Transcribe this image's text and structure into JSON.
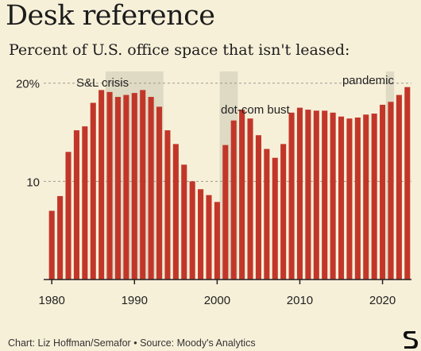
{
  "title": "Desk reference",
  "subtitle": "Percent of U.S. office space that isn't leased:",
  "footer": {
    "credit": "Chart: Liz Hoffman/Semafor",
    "separator": "•",
    "source": "Source: Moody's Analytics"
  },
  "logo": {
    "icon": "semafor-s-logo-icon"
  },
  "chart_data": {
    "type": "bar",
    "x": [
      1980,
      1981,
      1982,
      1983,
      1984,
      1985,
      1986,
      1987,
      1988,
      1989,
      1990,
      1991,
      1992,
      1993,
      1994,
      1995,
      1996,
      1997,
      1998,
      1999,
      2000,
      2001,
      2002,
      2003,
      2004,
      2005,
      2006,
      2007,
      2008,
      2009,
      2010,
      2011,
      2012,
      2013,
      2014,
      2015,
      2016,
      2017,
      2018,
      2019,
      2020,
      2021,
      2022,
      2023
    ],
    "values": [
      7.0,
      8.5,
      13.0,
      15.2,
      15.6,
      18.0,
      19.3,
      19.1,
      18.6,
      18.8,
      19.0,
      19.3,
      18.6,
      17.6,
      15.2,
      13.8,
      11.7,
      10.0,
      9.2,
      8.6,
      7.9,
      13.7,
      16.2,
      17.3,
      16.4,
      14.7,
      13.3,
      12.4,
      13.8,
      17.0,
      17.5,
      17.3,
      17.2,
      17.2,
      17.0,
      16.6,
      16.4,
      16.5,
      16.8,
      16.9,
      17.8,
      18.1,
      18.8,
      19.6
    ],
    "ylim": [
      0,
      22
    ],
    "yticks": [
      10,
      20
    ],
    "ytick_labels": [
      "10",
      "20%"
    ],
    "xticks": [
      1980,
      1990,
      2000,
      2010,
      2020
    ],
    "xtick_labels": [
      "1980",
      "1990",
      "2000",
      "2010",
      "2020"
    ],
    "grid": "dashed horizontal at y ticks",
    "bar_color": "#c2362a",
    "annotations": [
      {
        "label": "S&L crisis",
        "start": 1986.5,
        "end": 1993.5
      },
      {
        "label": "dot-com bust",
        "start": 2000.3,
        "end": 2002.5
      },
      {
        "label": "pandemic",
        "start": 2020.4,
        "end": 2021.4
      }
    ],
    "shade_color": "#d9d6c0"
  }
}
